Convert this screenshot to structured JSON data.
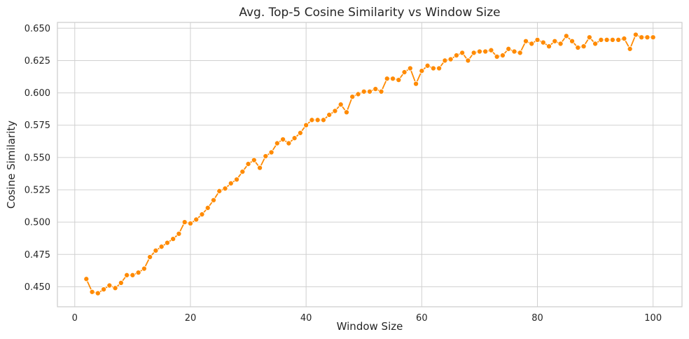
{
  "colors": {
    "series": "#ff8a00",
    "grid": "#d0d0d0",
    "frame": "#cccccc",
    "text": "#262626"
  },
  "chart_data": {
    "type": "line",
    "title": "Avg. Top-5 Cosine Similarity vs Window Size",
    "xlabel": "Window Size",
    "ylabel": "Cosine Similarity",
    "xlim": [
      -3.0,
      105.0
    ],
    "ylim": [
      0.4345,
      0.6545
    ],
    "xticks": [
      0,
      20,
      40,
      60,
      80,
      100
    ],
    "xtick_labels": [
      "0",
      "20",
      "40",
      "60",
      "80",
      "100"
    ],
    "yticks": [
      0.45,
      0.475,
      0.5,
      0.525,
      0.55,
      0.575,
      0.6,
      0.625,
      0.65
    ],
    "ytick_labels": [
      "0.450",
      "0.475",
      "0.500",
      "0.525",
      "0.550",
      "0.575",
      "0.600",
      "0.625",
      "0.650"
    ],
    "grid": true,
    "markers": true,
    "series": [
      {
        "x": [
          2,
          3,
          4,
          5,
          6,
          7,
          8,
          9,
          10,
          11,
          12,
          13,
          14,
          15,
          16,
          17,
          18,
          19,
          20,
          21,
          22,
          23,
          24,
          25,
          26,
          27,
          28,
          29,
          30,
          31,
          32,
          33,
          34,
          35,
          36,
          37,
          38,
          39,
          40,
          41,
          42,
          43,
          44,
          45,
          46,
          47,
          48,
          49,
          50,
          51,
          52,
          53,
          54,
          55,
          56,
          57,
          58,
          59,
          60,
          61,
          62,
          63,
          64,
          65,
          66,
          67,
          68,
          69,
          70,
          71,
          72,
          73,
          74,
          75,
          76,
          77,
          78,
          79,
          80,
          81,
          82,
          83,
          84,
          85,
          86,
          87,
          88,
          89,
          90,
          91,
          92,
          93,
          94,
          95,
          96,
          97,
          98,
          99,
          100
        ],
        "values": [
          0.456,
          0.446,
          0.445,
          0.448,
          0.451,
          0.449,
          0.453,
          0.459,
          0.459,
          0.461,
          0.464,
          0.473,
          0.478,
          0.481,
          0.484,
          0.487,
          0.491,
          0.5,
          0.499,
          0.502,
          0.506,
          0.511,
          0.517,
          0.524,
          0.526,
          0.53,
          0.533,
          0.539,
          0.545,
          0.548,
          0.542,
          0.551,
          0.554,
          0.561,
          0.564,
          0.561,
          0.565,
          0.569,
          0.575,
          0.579,
          0.579,
          0.579,
          0.583,
          0.586,
          0.591,
          0.585,
          0.597,
          0.599,
          0.601,
          0.601,
          0.603,
          0.601,
          0.611,
          0.611,
          0.61,
          0.616,
          0.619,
          0.607,
          0.617,
          0.621,
          0.619,
          0.619,
          0.625,
          0.626,
          0.629,
          0.631,
          0.625,
          0.631,
          0.632,
          0.632,
          0.633,
          0.628,
          0.629,
          0.634,
          0.632,
          0.631,
          0.64,
          0.638,
          0.641,
          0.639,
          0.636,
          0.64,
          0.638,
          0.644,
          0.64,
          0.635,
          0.636,
          0.643,
          0.638,
          0.641,
          0.641,
          0.641,
          0.641,
          0.642,
          0.634,
          0.645,
          0.643,
          0.643,
          0.643
        ]
      }
    ]
  }
}
